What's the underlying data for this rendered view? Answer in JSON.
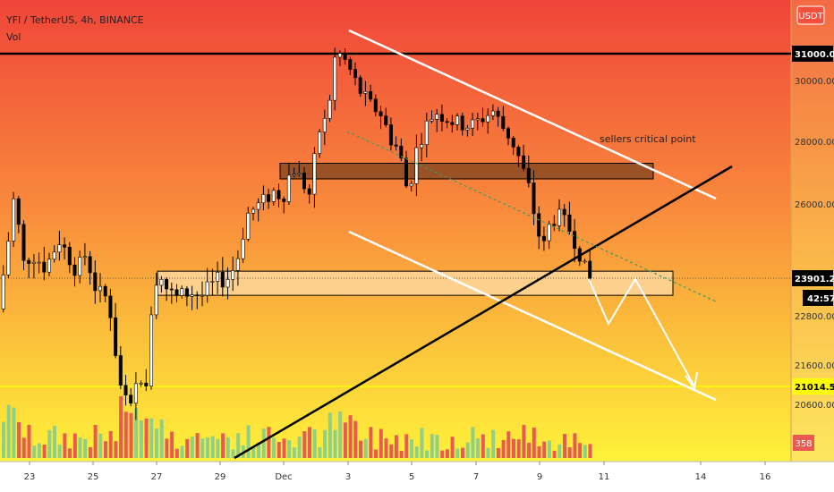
{
  "header": {
    "symbol": "YFI / TetherUS, 4h, BINANCE",
    "volume_label": "Vol"
  },
  "currency_button": "USDT",
  "colors": {
    "bg_top": "#f0473a",
    "bg_mid": "#f9a03a",
    "bg_bottom": "#fff23c",
    "candle_up": "#ffffff",
    "candle_down": "#000000",
    "vol_up": "#8fcf86",
    "vol_down": "#e85b50",
    "level_yellow": "#ffff00",
    "trend_white": "#ffffff"
  },
  "chart_data": {
    "type": "candlestick",
    "title": "YFI / TetherUS, 4h, BINANCE",
    "y_ticks": [
      31000.0,
      30000.0,
      28000.0,
      26000.0,
      23901.22,
      22800.0,
      21600.0,
      21014.57,
      20600.0
    ],
    "y_tick_labels": [
      "31000.00",
      "30000.00",
      "28000.00",
      "26000.00",
      "23901.22",
      "22800.00",
      "21600.00",
      "21014.57",
      "20600.00"
    ],
    "x_tick_labels": [
      "23",
      "25",
      "27",
      "29",
      "Dec",
      "3",
      "5",
      "7",
      "9",
      "11",
      "14",
      "16"
    ],
    "ylim": [
      19400,
      32400
    ],
    "last_price": 23901.22,
    "countdown": "42:57",
    "volume_last": "358",
    "horizontal_levels": [
      {
        "value": 31000.0,
        "label": "31000.00",
        "color": "#000000"
      },
      {
        "value": 21014.57,
        "label": "21014.57",
        "color": "#ffff00"
      }
    ],
    "zones": [
      {
        "name": "upper-brown-zone",
        "low": 26800,
        "high": 27300
      },
      {
        "name": "lower-beige-zone",
        "low": 23400,
        "high": 24100
      }
    ],
    "annotation": "sellers critical point"
  }
}
